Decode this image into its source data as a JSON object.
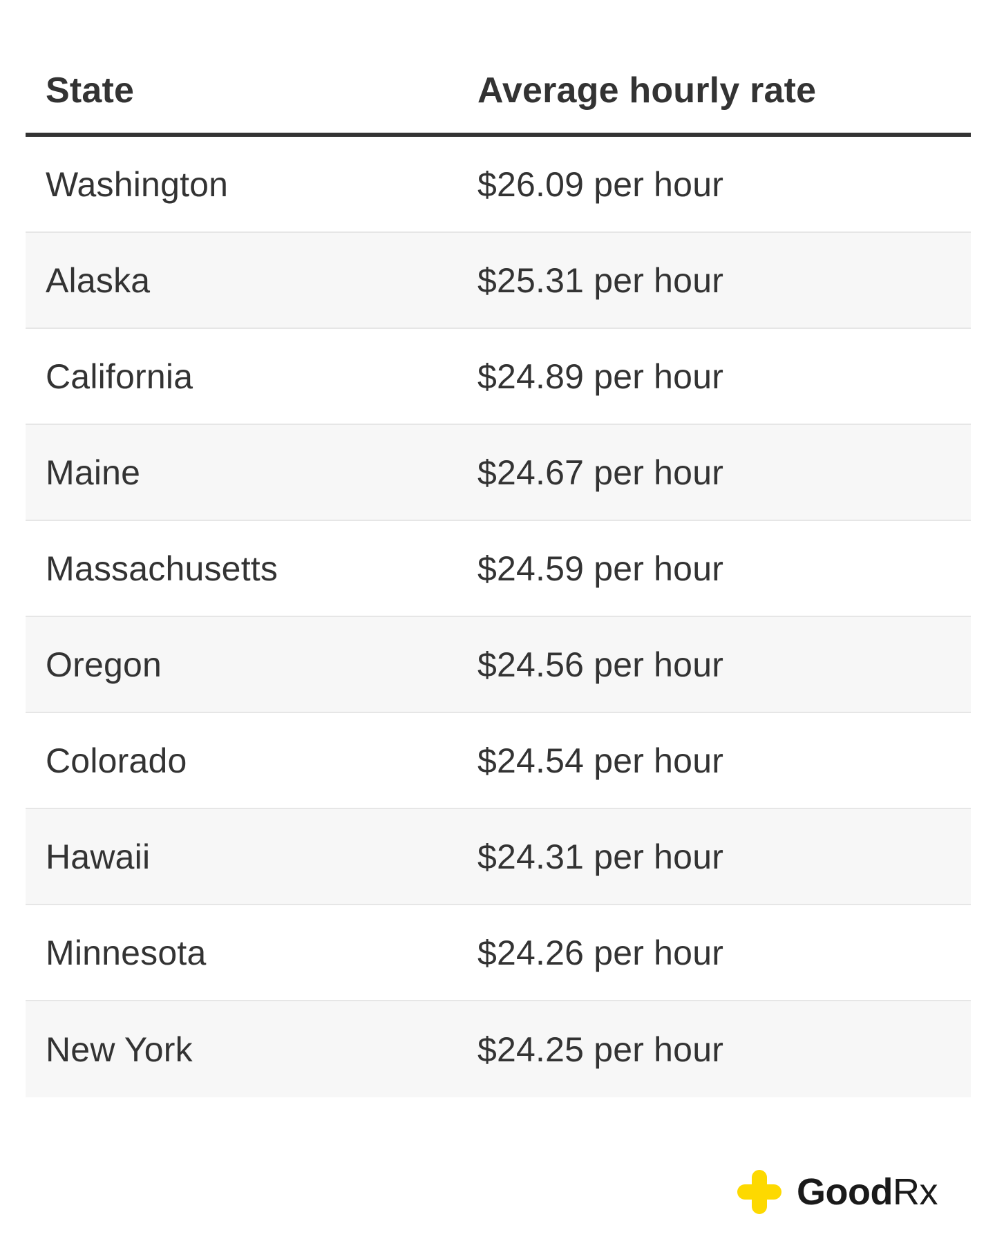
{
  "table": {
    "headers": [
      "State",
      "Average hourly rate"
    ],
    "rows": [
      {
        "state": "Washington",
        "rate": "$26.09 per hour"
      },
      {
        "state": "Alaska",
        "rate": "$25.31 per hour"
      },
      {
        "state": "California",
        "rate": "$24.89 per hour"
      },
      {
        "state": "Maine",
        "rate": "$24.67 per hour"
      },
      {
        "state": "Massachusetts",
        "rate": "$24.59 per hour"
      },
      {
        "state": "Oregon",
        "rate": "$24.56 per hour"
      },
      {
        "state": "Colorado",
        "rate": "$24.54 per hour"
      },
      {
        "state": "Hawaii",
        "rate": "$24.31 per hour"
      },
      {
        "state": "Minnesota",
        "rate": "$24.26 per hour"
      },
      {
        "state": "New York",
        "rate": "$24.25 per hour"
      }
    ]
  },
  "brand": {
    "name_good": "Good",
    "name_rx": "Rx",
    "icon": "goodrx-plus-icon",
    "icon_color": "#fdd900"
  },
  "colors": {
    "text": "#333333",
    "row_alt_background": "#f7f7f7",
    "header_rule": "#333333"
  }
}
